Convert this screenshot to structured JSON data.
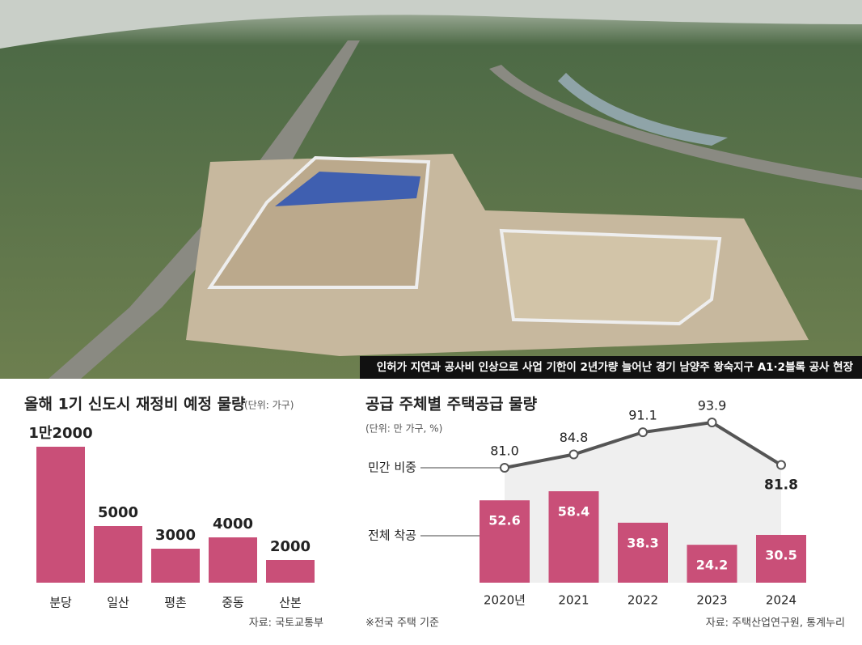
{
  "photo": {
    "caption": "인허가 지연과 공사비 인상으로 사업 기한이 2년가량 늘어난 경기 남양주 왕숙지구 A1·2블록 공사 현장"
  },
  "chart_data": [
    {
      "type": "bar",
      "title": "올해 1기 신도시 재정비 예정 물량",
      "subtitle": "(단위: 가구)",
      "categories": [
        "분당",
        "일산",
        "평촌",
        "중동",
        "산본"
      ],
      "values": [
        12000,
        5000,
        3000,
        4000,
        2000
      ],
      "value_labels": [
        "1만2000",
        "5000",
        "3000",
        "4000",
        "2000"
      ],
      "color": "#c94f78",
      "source": "자료: 국토교통부"
    },
    {
      "type": "bar-line",
      "title": "공급 주체별 주택공급 물량",
      "subtitle": "(단위: 만 가구, %)",
      "categories": [
        "2020년",
        "2021",
        "2022",
        "2023",
        "2024"
      ],
      "series": [
        {
          "name": "전체 착공",
          "color": "#c94f78",
          "values": [
            52.6,
            58.4,
            38.3,
            24.2,
            30.5
          ]
        },
        {
          "name": "민간 비중",
          "color": "#555555",
          "values": [
            81.0,
            84.8,
            91.1,
            93.9,
            81.8
          ],
          "value_labels": [
            "81.0",
            "84.8",
            "91.1",
            "93.9",
            "81.8"
          ]
        }
      ],
      "note": "※전국 주택 기준",
      "source": "자료: 주택산업연구원, 통계누리"
    }
  ]
}
